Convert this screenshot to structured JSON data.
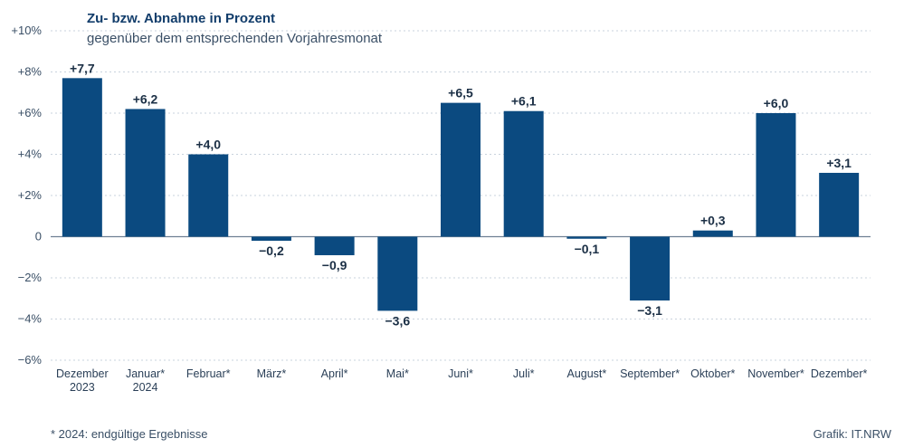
{
  "header": {
    "title": "Zu- bzw. Abnahme in Prozent",
    "subtitle": "gegenüber dem entsprechenden Vorjahresmonat"
  },
  "footer": {
    "footnote": "* 2024: endgültige Ergebnisse",
    "source": "Grafik: IT.NRW"
  },
  "chart_data": {
    "type": "bar",
    "title": "Zu- bzw. Abnahme in Prozent",
    "subtitle": "gegenüber dem entsprechenden Vorjahresmonat",
    "categories": [
      [
        "Dezember",
        "2023"
      ],
      [
        "Januar*",
        "2024"
      ],
      [
        "Februar*"
      ],
      [
        "März*"
      ],
      [
        "April*"
      ],
      [
        "Mai*"
      ],
      [
        "Juni*"
      ],
      [
        "Juli*"
      ],
      [
        "August*"
      ],
      [
        "September*"
      ],
      [
        "Oktober*"
      ],
      [
        "November*"
      ],
      [
        "Dezember*"
      ]
    ],
    "values": [
      7.7,
      6.2,
      4.0,
      -0.2,
      -0.9,
      -3.6,
      6.5,
      6.1,
      -0.1,
      -3.1,
      0.3,
      6.0,
      3.1
    ],
    "value_labels": [
      "+7,7",
      "+6,2",
      "+4,0",
      "−0,2",
      "−0,9",
      "−3,6",
      "+6,5",
      "+6,1",
      "−0,1",
      "−3,1",
      "+0,3",
      "+6,0",
      "+3,1"
    ],
    "ylim": [
      -6,
      10
    ],
    "yticks": [
      10,
      8,
      6,
      4,
      2,
      0,
      -2,
      -4,
      -6
    ],
    "ytick_labels": [
      "+10%",
      "+8%",
      "+6%",
      "+4%",
      "+2%",
      "0",
      "−2%",
      "−4%",
      "−6%"
    ],
    "grid": true,
    "bar_color": "#0b4a80",
    "grid_color": "#c9d3dd",
    "axis_color": "#6f8194"
  }
}
